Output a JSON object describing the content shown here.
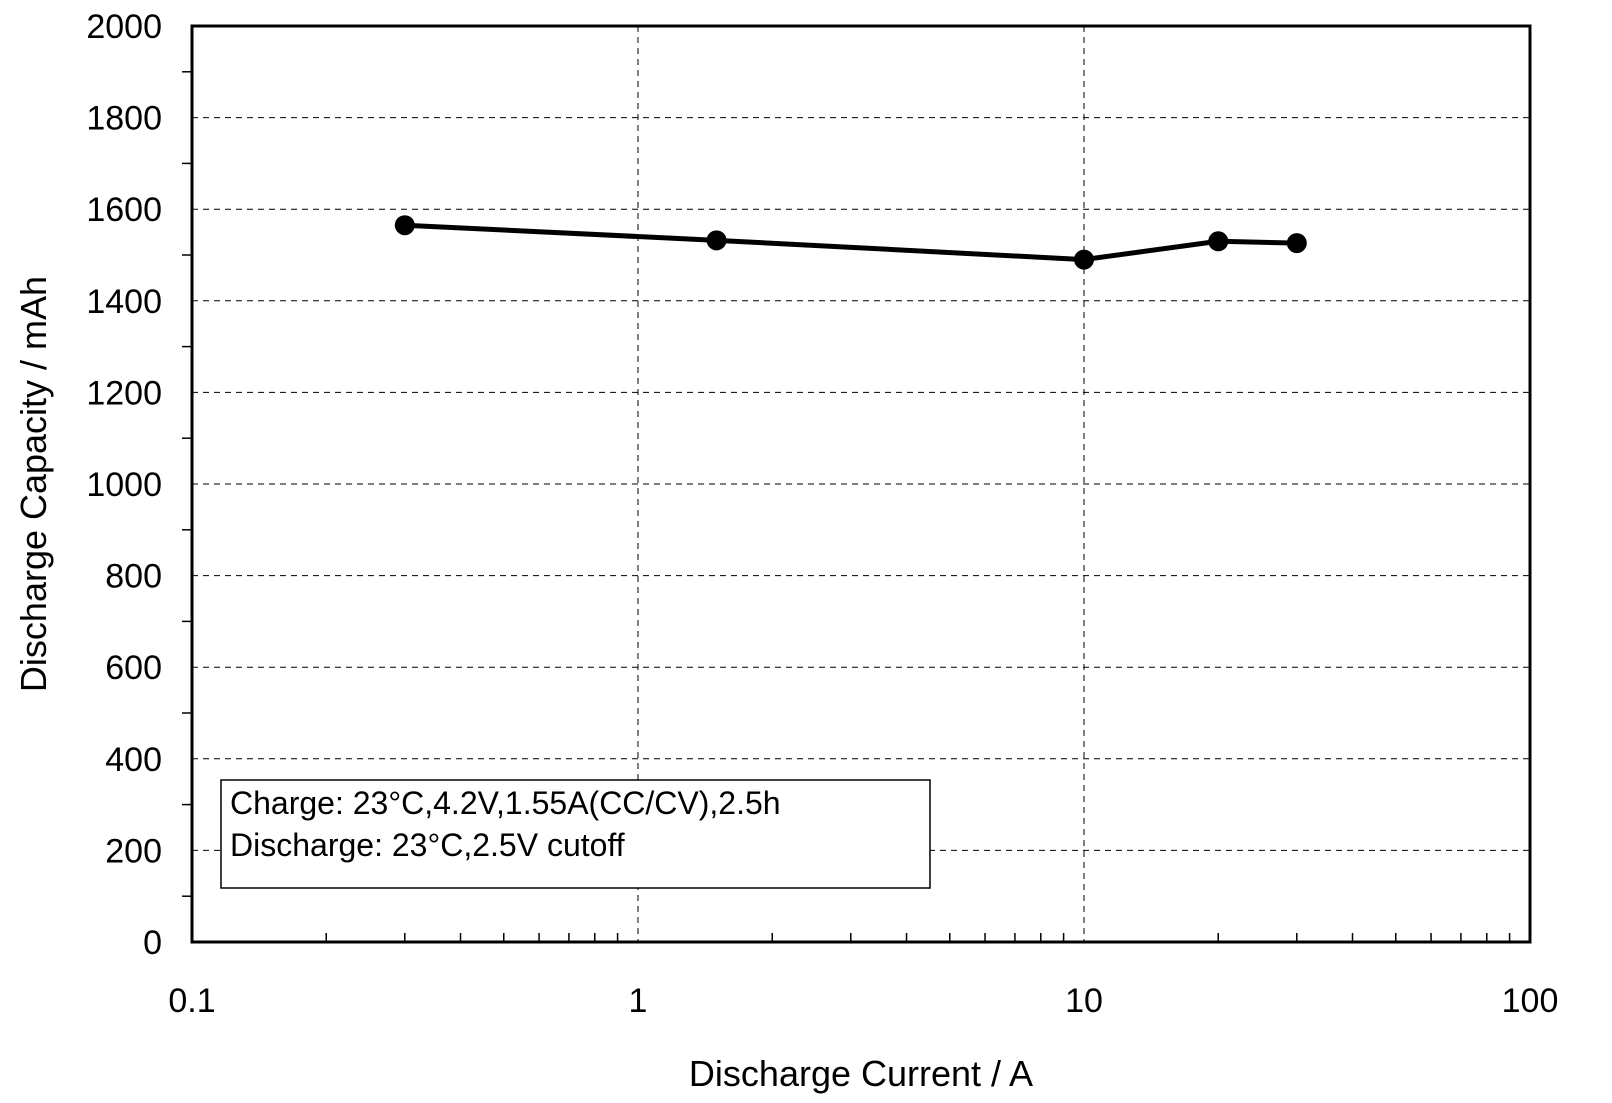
{
  "chart_data": {
    "type": "line",
    "xlabel": "Discharge Current / A",
    "ylabel": "Discharge Capacity / mAh",
    "x_scale": "log",
    "xlim": [
      0.1,
      100
    ],
    "ylim": [
      0,
      2000
    ],
    "x_ticks": [
      "0.1",
      "1",
      "10",
      "100"
    ],
    "y_ticks": [
      "0",
      "200",
      "400",
      "600",
      "800",
      "1000",
      "1200",
      "1400",
      "1600",
      "1800",
      "2000"
    ],
    "grid": true,
    "series": [
      {
        "x": [
          0.3,
          1.5,
          10,
          20,
          30
        ],
        "y": [
          1565,
          1532,
          1490,
          1530,
          1526
        ],
        "color": "#000000",
        "marker": "circle"
      }
    ],
    "annotations": [
      "Charge: 23°C,4.2V,1.55A(CC/CV),2.5h",
      "Discharge: 23°C,2.5V cutoff"
    ]
  }
}
